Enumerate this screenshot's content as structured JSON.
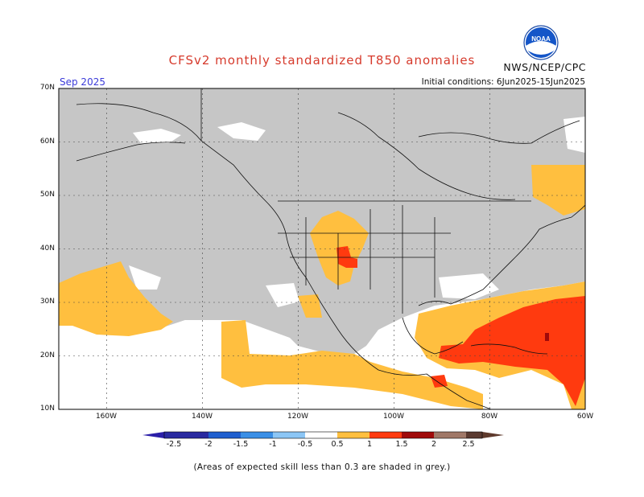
{
  "title": "CFSv2 monthly standardized T850 anomalies",
  "organization": "NWS/NCEP/CPC",
  "logo_text": "NOAA",
  "month": "Sep 2025",
  "initial_conditions": "Initial conditions: 6Jun2025-15Jun2025",
  "footnote": "(Areas of expected skill less than 0.3 are shaded in grey.)",
  "lat_labels": [
    "70N",
    "60N",
    "50N",
    "40N",
    "30N",
    "20N",
    "10N"
  ],
  "lon_labels": [
    "160W",
    "140W",
    "120W",
    "100W",
    "80W",
    "60W"
  ],
  "colorbar": {
    "ticks": [
      "-2.5",
      "-2",
      "-1.5",
      "-1",
      "-0.5",
      "0.5",
      "1",
      "1.5",
      "2",
      "2.5"
    ],
    "colors": [
      "#2a2aa0",
      "#1f5fcf",
      "#3a8fe6",
      "#8cc6f5",
      "#ffffff",
      "#ffbf3f",
      "#ff3a0f",
      "#a00a0a",
      "#a07868",
      "#5a3a30"
    ],
    "low_end_color": "#2b1fa8",
    "high_end_color": "#5e3a2c",
    "skill_grey": "#c6c6c6"
  },
  "chart_data": {
    "type": "heatmap",
    "variable": "standardized T850 anomaly",
    "lat_range": [
      10,
      70
    ],
    "lon_range": [
      -170,
      -60
    ],
    "regions": [
      {
        "area": "Eastern Pacific near Hawaii (north)",
        "anomaly_class": "0.5 to 1"
      },
      {
        "area": "Eastern Pacific off Mexico",
        "anomaly_class": "0.5 to 1"
      },
      {
        "area": "Colorado / Utah",
        "anomaly_class": "0.5 to 1"
      },
      {
        "area": "Four Corners",
        "anomaly_class": "1 to 1.5"
      },
      {
        "area": "Gulf of Mexico / Caribbean",
        "anomaly_class": "0.5 to 1"
      },
      {
        "area": "Caribbean / Western Atlantic",
        "anomaly_class": "1 to 1.5"
      },
      {
        "area": "Atlantic Canada",
        "anomaly_class": "0.5 to 1"
      }
    ]
  }
}
